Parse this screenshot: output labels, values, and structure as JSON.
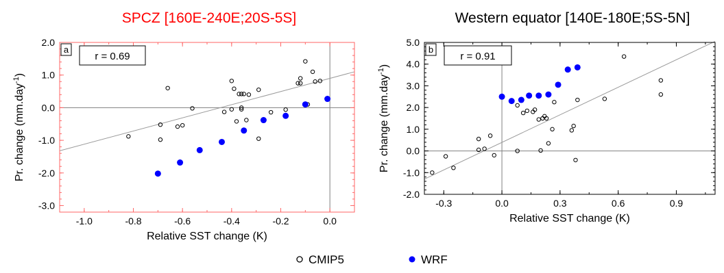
{
  "figure": {
    "legend": [
      {
        "label": "CMIP5",
        "marker": "open-circle",
        "color": "#000000"
      },
      {
        "label": "WRF",
        "marker": "filled-circle",
        "color": "#0000ff"
      }
    ]
  },
  "chart_data": [
    {
      "type": "scatter",
      "title": "SPCZ [160E-240E;20S-5S]",
      "title_color": "#ff0000",
      "frame_color": "#ff6666",
      "panel_label": "a",
      "r_label": "r = 0.69",
      "xlabel": "Relative SST change (K)",
      "ylabel_main": "Pr. change (mm.day",
      "ylabel_sup": "-1",
      "ylabel_close": ")",
      "xlim": [
        -1.1,
        0.1
      ],
      "ylim": [
        -3.2,
        2.0
      ],
      "xticks": [
        -1.0,
        -0.8,
        -0.6,
        -0.4,
        -0.2,
        0.0
      ],
      "xtick_labels": [
        "-1.0",
        "-0.8",
        "-0.6",
        "-0.4",
        "-0.2",
        "0.0"
      ],
      "yticks": [
        -3,
        -2,
        -1,
        0,
        1,
        2
      ],
      "ytick_labels": [
        "-3.0",
        "-2.0",
        "-1.0",
        "0.0",
        "1.0",
        "2.0"
      ],
      "zero_lines": {
        "x": 0,
        "y": 0
      },
      "regression": [
        [
          -1.1,
          -1.32
        ],
        [
          0.1,
          1.1
        ]
      ],
      "series": [
        {
          "name": "CMIP5",
          "x": [
            -0.82,
            -0.69,
            -0.69,
            -0.66,
            -0.62,
            -0.6,
            -0.56,
            -0.43,
            -0.4,
            -0.39,
            -0.4,
            -0.37,
            -0.36,
            -0.35,
            -0.36,
            -0.34,
            -0.38,
            -0.36,
            -0.33,
            -0.29,
            -0.29,
            -0.24,
            -0.18,
            -0.13,
            -0.12,
            -0.12,
            -0.1,
            -0.07,
            -0.06,
            -0.04,
            -0.09
          ],
          "y": [
            -0.88,
            -0.52,
            -0.98,
            0.6,
            -0.58,
            -0.54,
            -0.02,
            -0.13,
            0.82,
            0.58,
            -0.05,
            0.42,
            0.42,
            0.42,
            -0.05,
            -0.38,
            -0.42,
            0.0,
            0.4,
            0.55,
            -0.95,
            -0.14,
            -0.06,
            0.75,
            0.9,
            0.75,
            1.42,
            1.1,
            0.8,
            0.82,
            0.1
          ]
        },
        {
          "name": "WRF",
          "x": [
            -0.7,
            -0.61,
            -0.53,
            -0.44,
            -0.35,
            -0.27,
            -0.18,
            -0.1,
            -0.01
          ],
          "y": [
            -2.02,
            -1.68,
            -1.3,
            -1.05,
            -0.7,
            -0.38,
            -0.25,
            0.1,
            0.27
          ]
        }
      ]
    },
    {
      "type": "scatter",
      "title": "Western equator [140E-180E;5S-5N]",
      "title_color": "#000000",
      "frame_color": "#000000",
      "panel_label": "b",
      "r_label": "r = 0.91",
      "xlabel": "Relative SST change (K)",
      "ylabel_main": "Pr. change (mm.day",
      "ylabel_sup": "-1",
      "ylabel_close": ")",
      "xlim": [
        -0.4,
        1.1
      ],
      "ylim": [
        -2.0,
        5.0
      ],
      "xticks": [
        -0.3,
        0.0,
        0.3,
        0.6,
        0.9
      ],
      "xtick_labels": [
        "-0.3",
        "0.0",
        "0.3",
        "0.6",
        "0.9"
      ],
      "yticks": [
        -2,
        -1,
        0,
        1,
        2,
        3,
        4,
        5
      ],
      "ytick_labels": [
        "-2.0",
        "-1.0",
        "0.0",
        "1.0",
        "2.0",
        "3.0",
        "4.0",
        "5.0"
      ],
      "zero_lines": {
        "x": 0,
        "y": 0
      },
      "regression": [
        [
          -0.4,
          -1.3
        ],
        [
          1.1,
          5.05
        ]
      ],
      "series": [
        {
          "name": "CMIP5",
          "x": [
            -0.36,
            -0.29,
            -0.25,
            -0.12,
            -0.12,
            -0.09,
            -0.06,
            -0.04,
            0.08,
            0.08,
            0.11,
            0.13,
            0.16,
            0.17,
            0.19,
            0.2,
            0.21,
            0.22,
            0.23,
            0.24,
            0.26,
            0.27,
            0.36,
            0.37,
            0.38,
            0.39,
            0.53,
            0.63,
            0.82,
            0.82
          ],
          "y": [
            -1.0,
            -0.25,
            -0.78,
            0.55,
            0.05,
            0.1,
            0.7,
            -0.2,
            2.1,
            0.0,
            1.75,
            1.85,
            1.8,
            1.9,
            1.45,
            0.02,
            1.5,
            1.6,
            1.5,
            0.35,
            1.0,
            2.25,
            0.95,
            1.15,
            -0.42,
            2.35,
            2.4,
            4.35,
            3.25,
            2.6
          ]
        },
        {
          "name": "WRF",
          "x": [
            0.0,
            0.05,
            0.1,
            0.14,
            0.19,
            0.24,
            0.29,
            0.34,
            0.39
          ],
          "y": [
            2.5,
            2.3,
            2.35,
            2.55,
            2.55,
            2.6,
            3.05,
            3.75,
            3.85
          ]
        }
      ]
    }
  ]
}
